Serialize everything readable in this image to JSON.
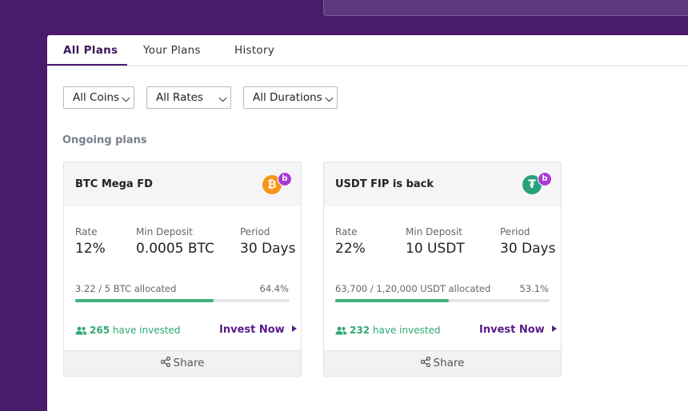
{
  "tabs": [
    {
      "label": "All Plans",
      "active": true
    },
    {
      "label": "Your Plans",
      "active": false
    },
    {
      "label": "History",
      "active": false
    }
  ],
  "filters": {
    "coins": "All Coins",
    "rates": "All Rates",
    "durations": "All Durations"
  },
  "section_title": "Ongoing plans",
  "plans": [
    {
      "title": "BTC Mega FD",
      "coin_icon": "bitcoin-icon",
      "coin_symbol": "₿",
      "coin_color": "#f7931a",
      "badge": "b",
      "rate_label": "Rate",
      "rate": "12%",
      "min_label": "Min Deposit",
      "min_deposit": "0.0005 BTC",
      "period_label": "Period",
      "period": "30 Days",
      "allocated": "3.22 / 5 BTC allocated",
      "percent": "64.4%",
      "progress": 0.644,
      "investors": "265",
      "investors_suffix": "have invested",
      "invest_label": "Invest Now",
      "share_label": "Share"
    },
    {
      "title": "USDT FIP is back",
      "coin_icon": "tether-icon",
      "coin_symbol": "₮",
      "coin_color": "#26a17b",
      "badge": "b",
      "rate_label": "Rate",
      "rate": "22%",
      "min_label": "Min Deposit",
      "min_deposit": "10 USDT",
      "period_label": "Period",
      "period": "30 Days",
      "allocated": "63,700 / 1,20,000 USDT allocated",
      "percent": "53.1%",
      "progress": 0.531,
      "investors": "232",
      "investors_suffix": "have invested",
      "invest_label": "Invest Now",
      "share_label": "Share"
    }
  ],
  "colors": {
    "background": "#4a1a6b",
    "accent": "#5a1a8a",
    "progress": "#3db37a",
    "badge": "#a83ad0"
  }
}
